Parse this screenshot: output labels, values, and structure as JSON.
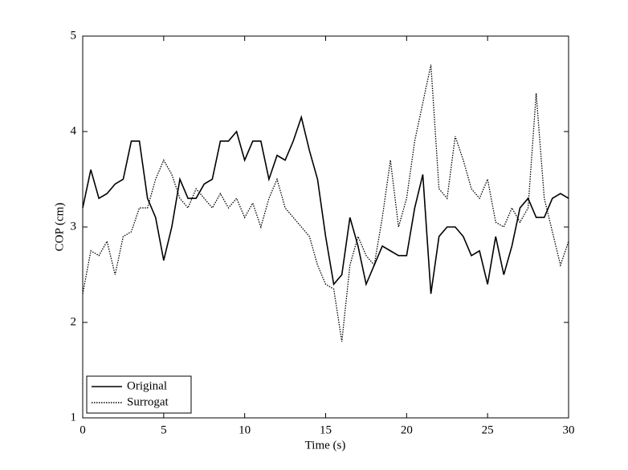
{
  "chart_data": {
    "type": "line",
    "xlabel": "Time (s)",
    "ylabel": "COP (cm)",
    "x": [
      0,
      0.5,
      1,
      1.5,
      2,
      2.5,
      3,
      3.5,
      4,
      4.5,
      5,
      5.5,
      6,
      6.5,
      7,
      7.5,
      8,
      8.5,
      9,
      9.5,
      10,
      10.5,
      11,
      11.5,
      12,
      12.5,
      13,
      13.5,
      14,
      14.5,
      15,
      15.5,
      16,
      16.5,
      17,
      17.5,
      18,
      18.5,
      19,
      19.5,
      20,
      20.5,
      21,
      21.5,
      22,
      22.5,
      23,
      23.5,
      24,
      24.5,
      25,
      25.5,
      26,
      26.5,
      27,
      27.5,
      28,
      28.5,
      29,
      29.5,
      30
    ],
    "series": [
      {
        "name": "Original",
        "color": "#000000",
        "style": "solid",
        "values": [
          3.2,
          3.6,
          3.3,
          3.35,
          3.45,
          3.5,
          3.9,
          3.9,
          3.3,
          3.1,
          2.65,
          3.0,
          3.5,
          3.3,
          3.3,
          3.45,
          3.5,
          3.9,
          3.9,
          4.0,
          3.7,
          3.9,
          3.9,
          3.5,
          3.75,
          3.7,
          3.9,
          4.15,
          3.8,
          3.5,
          2.9,
          2.4,
          2.5,
          3.1,
          2.8,
          2.4,
          2.6,
          2.8,
          2.75,
          2.7,
          2.7,
          3.2,
          3.55,
          2.3,
          2.9,
          3.0,
          3.0,
          2.9,
          2.7,
          2.75,
          2.4,
          2.9,
          2.5,
          2.8,
          3.2,
          3.3,
          3.1,
          3.1,
          3.3,
          3.35,
          3.3
        ]
      },
      {
        "name": "Surrogat",
        "color": "#000000",
        "style": "dotted",
        "values": [
          2.3,
          2.75,
          2.7,
          2.85,
          2.5,
          2.9,
          2.95,
          3.2,
          3.2,
          3.5,
          3.7,
          3.55,
          3.3,
          3.2,
          3.4,
          3.3,
          3.2,
          3.35,
          3.2,
          3.3,
          3.1,
          3.25,
          3.0,
          3.3,
          3.5,
          3.2,
          3.1,
          3.0,
          2.9,
          2.6,
          2.4,
          2.35,
          1.8,
          2.6,
          2.9,
          2.7,
          2.6,
          3.1,
          3.7,
          3.0,
          3.3,
          3.9,
          4.3,
          4.7,
          3.4,
          3.3,
          3.95,
          3.7,
          3.4,
          3.3,
          3.5,
          3.05,
          3.0,
          3.2,
          3.05,
          3.2,
          4.4,
          3.3,
          2.95,
          2.6,
          2.85
        ]
      }
    ],
    "xlim": [
      0,
      30
    ],
    "xticks": [
      0,
      5,
      10,
      15,
      20,
      25,
      30
    ],
    "ylim": [
      1,
      5
    ],
    "yticks": [
      1,
      2,
      3,
      4,
      5
    ],
    "legend": "bottom-left"
  }
}
